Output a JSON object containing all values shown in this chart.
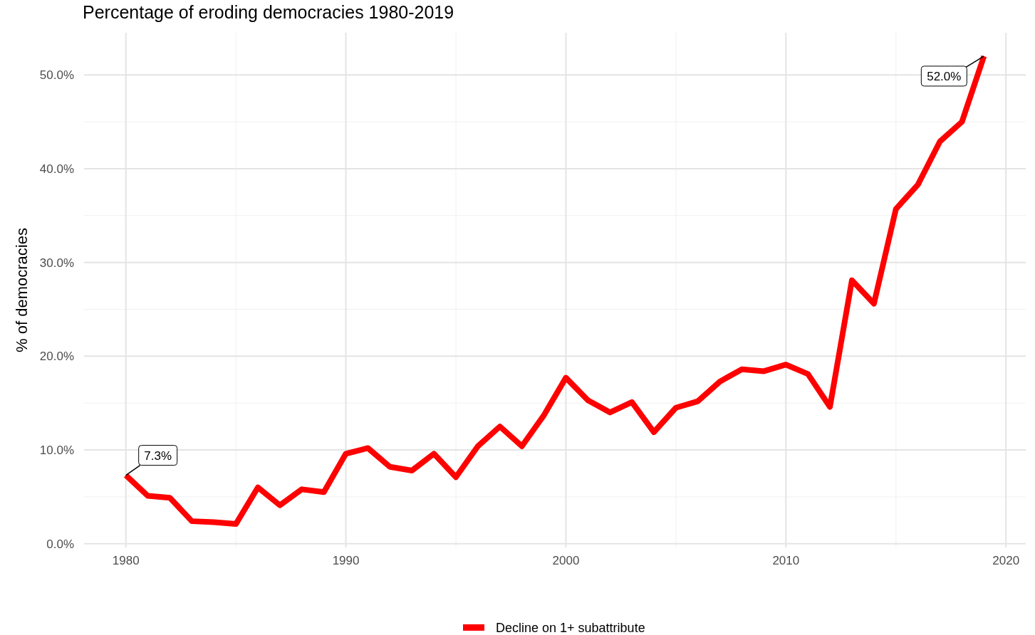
{
  "chart_data": {
    "type": "line",
    "title": "Percentage of eroding democracies 1980-2019",
    "ylabel": "% of democracies",
    "x": [
      1980,
      1981,
      1982,
      1983,
      1984,
      1985,
      1986,
      1987,
      1988,
      1989,
      1990,
      1991,
      1992,
      1993,
      1994,
      1995,
      1996,
      1997,
      1998,
      1999,
      2000,
      2001,
      2002,
      2003,
      2004,
      2005,
      2006,
      2007,
      2008,
      2009,
      2010,
      2011,
      2012,
      2013,
      2014,
      2015,
      2016,
      2017,
      2018,
      2019
    ],
    "series": [
      {
        "name": "Decline on 1+ subattribute",
        "color": "#ff0000",
        "values": [
          7.3,
          5.1,
          4.9,
          2.4,
          2.3,
          2.1,
          6.0,
          4.1,
          5.8,
          5.5,
          9.6,
          10.2,
          8.2,
          7.8,
          9.6,
          7.1,
          10.4,
          12.5,
          10.4,
          13.7,
          17.7,
          15.3,
          14.0,
          15.1,
          11.9,
          14.5,
          15.2,
          17.3,
          18.6,
          18.4,
          19.1,
          18.1,
          14.6,
          28.1,
          25.6,
          35.7,
          38.3,
          42.9,
          45.0,
          52.0
        ]
      }
    ],
    "xlim": [
      1978.1,
      2020.9
    ],
    "xticks": [
      1980,
      1990,
      2000,
      2010,
      2020
    ],
    "ylim": [
      -0.4,
      54.5
    ],
    "yticks": [
      {
        "value": 0,
        "label": "0.0%"
      },
      {
        "value": 10,
        "label": "10.0%"
      },
      {
        "value": 20,
        "label": "20.0%"
      },
      {
        "value": 30,
        "label": "30.0%"
      },
      {
        "value": 40,
        "label": "40.0%"
      },
      {
        "value": 50,
        "label": "50.0%"
      }
    ],
    "annotations": [
      {
        "text": "7.3%",
        "x": 1980,
        "y": 7.3
      },
      {
        "text": "52.0%",
        "x": 2019,
        "y": 52.0
      }
    ],
    "grid": true,
    "legend": "bottom",
    "line_style": "solid",
    "marker": "none"
  }
}
